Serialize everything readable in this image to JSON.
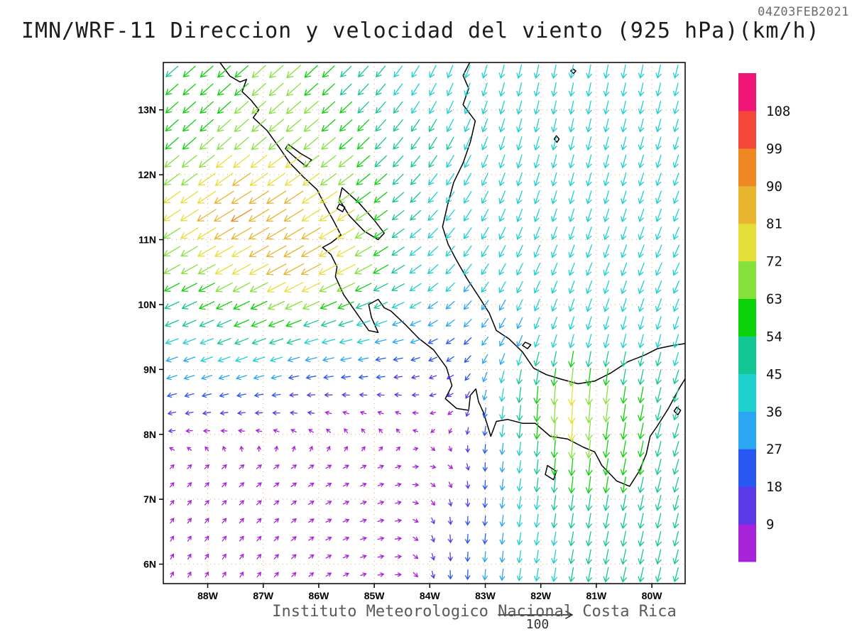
{
  "page": {
    "background": "#ffffff"
  },
  "chart_data": {
    "type": "vector-field",
    "title": "IMN/WRF-11 Direccion y velocidad del viento (925 hPa)(km/h)",
    "timestamp": "04Z03FEB2021",
    "footer": "Instituto Meteorologico Nacional Costa Rica",
    "reference_vector_label": "100",
    "grid_color": "#dd9f55",
    "x_axis": {
      "ticks": [
        "88W",
        "87W",
        "86W",
        "85W",
        "84W",
        "83W",
        "82W",
        "81W",
        "80W"
      ],
      "lons": [
        -88,
        -87,
        -86,
        -85,
        -84,
        -83,
        -82,
        -81,
        -80
      ]
    },
    "y_axis": {
      "ticks": [
        "13N",
        "12N",
        "11N",
        "10N",
        "9N",
        "8N",
        "7N",
        "6N"
      ],
      "lats": [
        13,
        12,
        11,
        10,
        9,
        8,
        7,
        6
      ]
    },
    "extent": {
      "lon_min": -88.8,
      "lon_max": -79.4,
      "lat_min": 5.7,
      "lat_max": 13.73
    },
    "colorbar": {
      "position": "right",
      "levels": [
        9,
        18,
        27,
        36,
        45,
        54,
        63,
        72,
        81,
        90,
        99,
        108
      ],
      "colors": [
        "#a722d8",
        "#5a3ae8",
        "#2957f2",
        "#2ba6f2",
        "#1ed0cf",
        "#13c795",
        "#0bd20b",
        "#85e23c",
        "#e6df3a",
        "#e9b42e",
        "#ef8722",
        "#f4483c",
        "#ef1678"
      ]
    },
    "wind_grid": {
      "units": "km/h",
      "lons": [
        -88.5,
        -87.5,
        -86.5,
        -85.5,
        -84.5,
        -83.5,
        -82.5,
        -81.5,
        -80.5,
        -79.5
      ],
      "lats": [
        13.5,
        12.5,
        11.5,
        10.5,
        9.5,
        8.5,
        7.5,
        6.5,
        5.8
      ],
      "u": [
        [
          -40,
          -45,
          -50,
          -35,
          -25,
          -15,
          -10,
          -8,
          -8,
          -10
        ],
        [
          -45,
          -50,
          -55,
          -45,
          -30,
          -20,
          -12,
          -10,
          -10,
          -12
        ],
        [
          -62,
          -80,
          -72,
          -60,
          -35,
          -25,
          -15,
          -12,
          -12,
          -15
        ],
        [
          -55,
          -65,
          -75,
          -70,
          -40,
          -25,
          -18,
          -15,
          -15,
          -18
        ],
        [
          -40,
          -45,
          -45,
          -40,
          -30,
          -20,
          -15,
          -12,
          -10,
          -12
        ],
        [
          -20,
          -18,
          -14,
          -10,
          -8,
          -6,
          -5,
          -5,
          -8,
          -15
        ],
        [
          4,
          6,
          7,
          7,
          6,
          4,
          -5,
          -5,
          -10,
          -15
        ],
        [
          4,
          5,
          6,
          8,
          8,
          0,
          -5,
          -8,
          -10,
          -12
        ],
        [
          3,
          4,
          5,
          6,
          7,
          0,
          -5,
          -8,
          -10,
          -12
        ]
      ],
      "v": [
        [
          -35,
          -40,
          -45,
          -35,
          -35,
          -40,
          -42,
          -42,
          -42,
          -40
        ],
        [
          -40,
          -45,
          -45,
          -40,
          -38,
          -40,
          -42,
          -42,
          -40,
          -38
        ],
        [
          -42,
          -48,
          -46,
          -40,
          -30,
          -35,
          -40,
          -40,
          -40,
          -38
        ],
        [
          -30,
          -35,
          -40,
          -35,
          -25,
          -30,
          -35,
          -38,
          -40,
          -38
        ],
        [
          -15,
          -18,
          -15,
          -10,
          -8,
          -15,
          -30,
          -40,
          -42,
          -40
        ],
        [
          -5,
          -3,
          0,
          2,
          2,
          -4,
          -50,
          -82,
          -60,
          -45
        ],
        [
          4,
          5,
          5,
          4,
          2,
          -4,
          -35,
          -62,
          -55,
          -50
        ],
        [
          6,
          6,
          5,
          3,
          1,
          -18,
          -35,
          -45,
          -50,
          -48
        ],
        [
          6,
          6,
          5,
          3,
          0,
          -22,
          -35,
          -45,
          -48,
          -45
        ]
      ]
    },
    "geo": {
      "paths": [
        {
          "name": "pacific-coast",
          "closed": false,
          "points": [
            [
              -87.78,
              13.73
            ],
            [
              -87.6,
              13.52
            ],
            [
              -87.42,
              13.43
            ],
            [
              -87.3,
              13.47
            ],
            [
              -87.38,
              13.28
            ],
            [
              -87.22,
              13.15
            ],
            [
              -87.08,
              13.0
            ],
            [
              -87.18,
              12.88
            ],
            [
              -86.93,
              12.68
            ],
            [
              -86.72,
              12.43
            ],
            [
              -86.52,
              12.18
            ],
            [
              -86.28,
              11.97
            ],
            [
              -86.03,
              11.77
            ],
            [
              -85.87,
              11.5
            ],
            [
              -85.72,
              11.27
            ],
            [
              -85.6,
              11.07
            ],
            [
              -85.78,
              10.95
            ],
            [
              -85.93,
              10.88
            ],
            [
              -85.78,
              10.77
            ],
            [
              -85.67,
              10.58
            ],
            [
              -85.7,
              10.43
            ],
            [
              -85.55,
              10.15
            ],
            [
              -85.32,
              9.87
            ],
            [
              -85.1,
              9.6
            ],
            [
              -84.93,
              9.57
            ],
            [
              -85.05,
              9.8
            ],
            [
              -85.1,
              10.0
            ],
            [
              -84.93,
              10.08
            ],
            [
              -84.82,
              9.95
            ],
            [
              -84.7,
              9.9
            ],
            [
              -84.45,
              9.7
            ],
            [
              -84.2,
              9.48
            ],
            [
              -83.93,
              9.3
            ],
            [
              -83.7,
              9.03
            ],
            [
              -83.6,
              8.75
            ],
            [
              -83.72,
              8.55
            ],
            [
              -83.52,
              8.4
            ],
            [
              -83.3,
              8.37
            ],
            [
              -83.27,
              8.6
            ],
            [
              -83.17,
              8.7
            ],
            [
              -83.12,
              8.5
            ],
            [
              -83.03,
              8.33
            ],
            [
              -82.9,
              7.97
            ],
            [
              -82.8,
              8.2
            ],
            [
              -82.6,
              8.23
            ],
            [
              -82.33,
              8.17
            ],
            [
              -82.1,
              8.17
            ],
            [
              -81.83,
              7.97
            ],
            [
              -81.52,
              7.93
            ],
            [
              -81.23,
              7.8
            ],
            [
              -81.03,
              7.73
            ],
            [
              -80.9,
              7.52
            ],
            [
              -80.63,
              7.28
            ],
            [
              -80.4,
              7.2
            ],
            [
              -80.23,
              7.43
            ],
            [
              -80.1,
              7.7
            ],
            [
              -80.03,
              7.97
            ],
            [
              -79.9,
              8.13
            ],
            [
              -79.7,
              8.4
            ],
            [
              -79.5,
              8.72
            ],
            [
              -79.39,
              8.87
            ]
          ]
        },
        {
          "name": "caribbean-coast",
          "closed": false,
          "points": [
            [
              -79.39,
              9.4
            ],
            [
              -79.62,
              9.37
            ],
            [
              -79.9,
              9.32
            ],
            [
              -80.13,
              9.22
            ],
            [
              -80.43,
              9.12
            ],
            [
              -80.73,
              8.95
            ],
            [
              -81.03,
              8.82
            ],
            [
              -81.33,
              8.78
            ],
            [
              -81.63,
              8.85
            ],
            [
              -81.9,
              8.92
            ],
            [
              -82.13,
              9.02
            ],
            [
              -82.33,
              9.27
            ],
            [
              -82.57,
              9.47
            ],
            [
              -82.8,
              9.6
            ],
            [
              -82.93,
              9.87
            ],
            [
              -83.1,
              10.1
            ],
            [
              -83.33,
              10.4
            ],
            [
              -83.53,
              10.7
            ],
            [
              -83.67,
              10.93
            ],
            [
              -83.77,
              11.2
            ],
            [
              -83.68,
              11.53
            ],
            [
              -83.57,
              11.88
            ],
            [
              -83.4,
              12.18
            ],
            [
              -83.27,
              12.5
            ],
            [
              -83.18,
              12.83
            ],
            [
              -83.4,
              13.08
            ],
            [
              -83.3,
              13.33
            ],
            [
              -83.4,
              13.53
            ],
            [
              -83.28,
              13.73
            ]
          ]
        },
        {
          "name": "lake-nicaragua",
          "closed": true,
          "points": [
            [
              -85.58,
              11.8
            ],
            [
              -85.28,
              11.57
            ],
            [
              -85.0,
              11.3
            ],
            [
              -84.82,
              11.1
            ],
            [
              -84.93,
              11.0
            ],
            [
              -85.18,
              11.13
            ],
            [
              -85.45,
              11.37
            ],
            [
              -85.63,
              11.62
            ]
          ]
        },
        {
          "name": "lake-managua",
          "closed": true,
          "points": [
            [
              -86.55,
              12.47
            ],
            [
              -86.33,
              12.33
            ],
            [
              -86.13,
              12.23
            ],
            [
              -86.23,
              12.13
            ],
            [
              -86.43,
              12.27
            ],
            [
              -86.6,
              12.4
            ]
          ]
        },
        {
          "name": "ometepe-island",
          "closed": true,
          "points": [
            [
              -85.63,
              11.55
            ],
            [
              -85.53,
              11.5
            ],
            [
              -85.57,
              11.43
            ],
            [
              -85.67,
              11.48
            ]
          ]
        },
        {
          "name": "coiba-island",
          "closed": true,
          "points": [
            [
              -81.88,
              7.52
            ],
            [
              -81.72,
              7.43
            ],
            [
              -81.77,
              7.3
            ],
            [
              -81.92,
              7.38
            ]
          ]
        },
        {
          "name": "providencia-island",
          "closed": true,
          "points": [
            [
              -81.42,
              13.63
            ],
            [
              -81.37,
              13.6
            ],
            [
              -81.41,
              13.56
            ],
            [
              -81.46,
              13.6
            ]
          ]
        },
        {
          "name": "san-andres-island",
          "closed": true,
          "points": [
            [
              -81.72,
              12.6
            ],
            [
              -81.67,
              12.55
            ],
            [
              -81.71,
              12.5
            ],
            [
              -81.76,
              12.55
            ]
          ]
        },
        {
          "name": "bocas-islands",
          "closed": true,
          "points": [
            [
              -82.28,
              9.42
            ],
            [
              -82.18,
              9.38
            ],
            [
              -82.24,
              9.32
            ],
            [
              -82.33,
              9.37
            ]
          ]
        },
        {
          "name": "pearl-islands",
          "closed": true,
          "points": [
            [
              -79.55,
              8.42
            ],
            [
              -79.48,
              8.37
            ],
            [
              -79.53,
              8.3
            ],
            [
              -79.6,
              8.36
            ]
          ]
        }
      ]
    }
  }
}
